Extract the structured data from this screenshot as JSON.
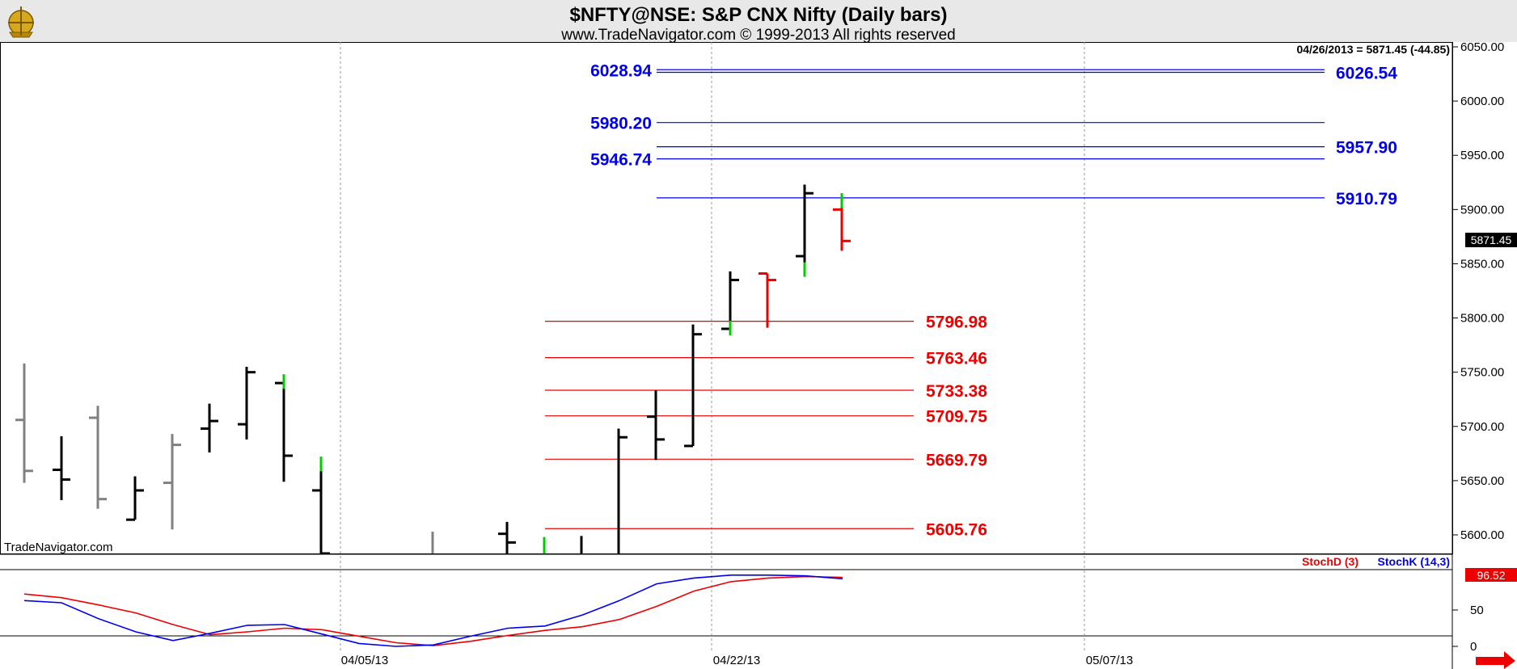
{
  "header": {
    "title": "$NFTY@NSE:  S&P CNX Nifty  (Daily bars)",
    "subtitle": "www.TradeNavigator.com © 1999-2013 All rights reserved",
    "watermark": "TradeNavigator.com",
    "last_info": "04/26/2013 = 5871.45 (-44.85)",
    "last_price_tag": "5871.45"
  },
  "colors": {
    "header_bg": "#e8e8e8",
    "blue_level": "#0000ee",
    "red_level": "#ee0000",
    "bar_default": "#000000",
    "bar_old": "#808080",
    "bar_up_tail": "#00cc00",
    "stoch_d": "#ee0000",
    "stoch_k": "#0000ee"
  },
  "chart_data": [
    {
      "type": "bar",
      "subtype": "ohlc",
      "price_axis": {
        "ylim": [
          5580,
          6055
        ],
        "ticks": [
          "6050.00",
          "6000.00",
          "5950.00",
          "5900.00",
          "5850.00",
          "5800.00",
          "5750.00",
          "5700.00",
          "5650.00",
          "5600.00"
        ]
      },
      "bars": [
        {
          "o": 5706,
          "h": 5758,
          "l": 5648,
          "c": 5659,
          "color": "gray"
        },
        {
          "o": 5660,
          "h": 5691,
          "l": 5632,
          "c": 5651,
          "color": "black"
        },
        {
          "o": 5708,
          "h": 5719,
          "l": 5624,
          "c": 5633,
          "color": "gray"
        },
        {
          "o": 5614,
          "h": 5654,
          "l": 5614,
          "c": 5641,
          "color": "black"
        },
        {
          "o": 5648,
          "h": 5693,
          "l": 5605,
          "c": 5683,
          "color": "gray"
        },
        {
          "o": 5698,
          "h": 5721,
          "l": 5676,
          "c": 5705,
          "color": "black"
        },
        {
          "o": 5702,
          "h": 5755,
          "l": 5688,
          "c": 5750,
          "color": "black"
        },
        {
          "o": 5740,
          "h": 5748,
          "l": 5649,
          "c": 5673,
          "color": "black",
          "tail": "top"
        },
        {
          "o": 5641,
          "h": 5672,
          "l": 5580,
          "c": 5580,
          "color": "black",
          "tail": "top"
        },
        {
          "o": null,
          "h": 5603,
          "l": 5580,
          "c": null,
          "color": "gray"
        },
        {
          "o": 5601,
          "h": 5612,
          "l": 5580,
          "c": 5593,
          "color": "black"
        },
        {
          "o": null,
          "h": 5598,
          "l": 5580,
          "c": null,
          "color": "green"
        },
        {
          "o": null,
          "h": 5599,
          "l": 5580,
          "c": null,
          "color": "black"
        },
        {
          "o": null,
          "h": 5698,
          "l": 5580,
          "c": 5690,
          "color": "black"
        },
        {
          "o": 5709,
          "h": 5733,
          "l": 5669,
          "c": 5688,
          "color": "black"
        },
        {
          "o": 5682,
          "h": 5794,
          "l": 5682,
          "c": 5785,
          "color": "black"
        },
        {
          "o": 5790,
          "h": 5843,
          "l": 5784,
          "c": 5835,
          "color": "black",
          "tail": "bottom"
        },
        {
          "o": 5841,
          "h": 5841,
          "l": 5791,
          "c": 5835,
          "color": "red"
        },
        {
          "o": 5857,
          "h": 5923,
          "l": 5838,
          "c": 5915,
          "color": "black",
          "tail": "bottom"
        },
        {
          "o": 5900,
          "h": 5915,
          "l": 5862,
          "c": 5871,
          "color": "red",
          "tail": "top"
        }
      ],
      "blue_levels": [
        {
          "value": 6028.94,
          "label": "6028.94",
          "side": "left"
        },
        {
          "value": 6026.54,
          "label": "6026.54",
          "side": "right"
        },
        {
          "value": 5980.2,
          "label": "5980.20",
          "side": "left"
        },
        {
          "value": 5957.9,
          "label": "5957.90",
          "side": "right"
        },
        {
          "value": 5946.74,
          "label": "5946.74",
          "side": "left"
        },
        {
          "value": 5910.79,
          "label": "5910.79",
          "side": "right"
        }
      ],
      "red_levels": [
        {
          "value": 5796.98,
          "label": "5796.98"
        },
        {
          "value": 5763.46,
          "label": "5763.46"
        },
        {
          "value": 5733.38,
          "label": "5733.38"
        },
        {
          "value": 5709.75,
          "label": "5709.75"
        },
        {
          "value": 5669.79,
          "label": "5669.79"
        },
        {
          "value": 5605.76,
          "label": "5605.76"
        }
      ]
    },
    {
      "type": "line",
      "title": "",
      "ylim": [
        0,
        100
      ],
      "ticks": [
        "50",
        "0"
      ],
      "legend": [
        "StochD (3)",
        "StochK (14,3)"
      ],
      "last_value_tag": "96.52",
      "series": [
        {
          "name": "StochD (3)",
          "values": [
            72,
            67,
            57,
            46,
            30,
            16,
            20,
            25,
            23,
            14,
            5,
            1,
            7,
            15,
            22,
            27,
            37,
            55,
            76,
            89,
            94,
            96,
            95
          ]
        },
        {
          "name": "StochK (14,3)",
          "values": [
            63,
            60,
            38,
            20,
            8,
            18,
            29,
            30,
            17,
            4,
            0,
            2,
            14,
            25,
            28,
            43,
            63,
            86,
            94,
            98,
            98,
            97,
            93
          ]
        }
      ],
      "x_index": [
        0,
        1,
        2,
        3,
        4,
        5,
        6,
        7,
        8,
        9,
        10,
        11,
        12,
        13,
        14,
        15,
        16,
        17,
        18,
        19,
        20,
        21,
        22
      ]
    }
  ],
  "dates": [
    "04/05/13",
    "04/22/13",
    "05/07/13"
  ]
}
